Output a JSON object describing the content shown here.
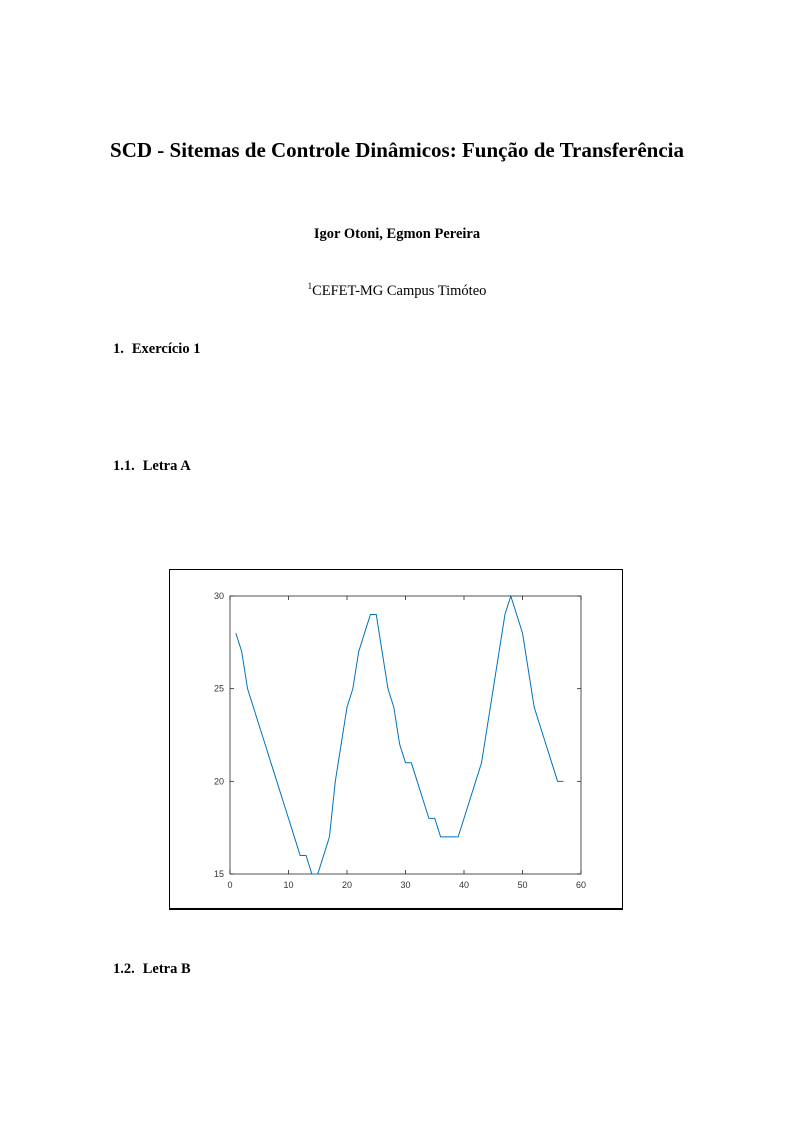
{
  "title": "SCD - Sitemas de Controle Dinâmicos: Função de Transferência",
  "authors": "Igor Otoni, Egmon Pereira",
  "affiliation": {
    "sup": "1",
    "text": "CEFET-MG Campus Timóteo"
  },
  "sections": [
    {
      "num": "1.",
      "label": "Exercício 1"
    },
    {
      "num": "1.1.",
      "label": "Letra A"
    },
    {
      "num": "1.2.",
      "label": "Letra B"
    }
  ],
  "chart_data": {
    "type": "line",
    "title": "",
    "xlabel": "",
    "ylabel": "",
    "xlim": [
      0,
      60
    ],
    "ylim": [
      15,
      30
    ],
    "xticks": [
      "0",
      "10",
      "20",
      "30",
      "40",
      "50",
      "60"
    ],
    "yticks": [
      "15",
      "20",
      "25",
      "30"
    ],
    "grid": false,
    "color": "#0072bd",
    "x": [
      1,
      2,
      3,
      4,
      5,
      6,
      7,
      8,
      9,
      10,
      11,
      12,
      13,
      14,
      15,
      16,
      17,
      18,
      19,
      20,
      21,
      22,
      23,
      24,
      25,
      26,
      27,
      28,
      29,
      30,
      31,
      32,
      33,
      34,
      35,
      36,
      37,
      38,
      39,
      40,
      41,
      42,
      43,
      44,
      45,
      46,
      47,
      48,
      49,
      50,
      51,
      52,
      53,
      54,
      55,
      56,
      57
    ],
    "y": [
      28,
      27,
      25,
      24,
      23,
      22,
      21,
      20,
      19,
      18,
      17,
      16,
      16,
      15,
      15,
      16,
      17,
      20,
      22,
      24,
      25,
      27,
      28,
      29,
      29,
      27,
      25,
      24,
      22,
      21,
      21,
      20,
      19,
      18,
      18,
      17,
      17,
      17,
      17,
      18,
      19,
      20,
      21,
      23,
      25,
      27,
      29,
      30,
      29,
      28,
      26,
      24,
      23,
      22,
      21,
      20,
      20
    ]
  }
}
